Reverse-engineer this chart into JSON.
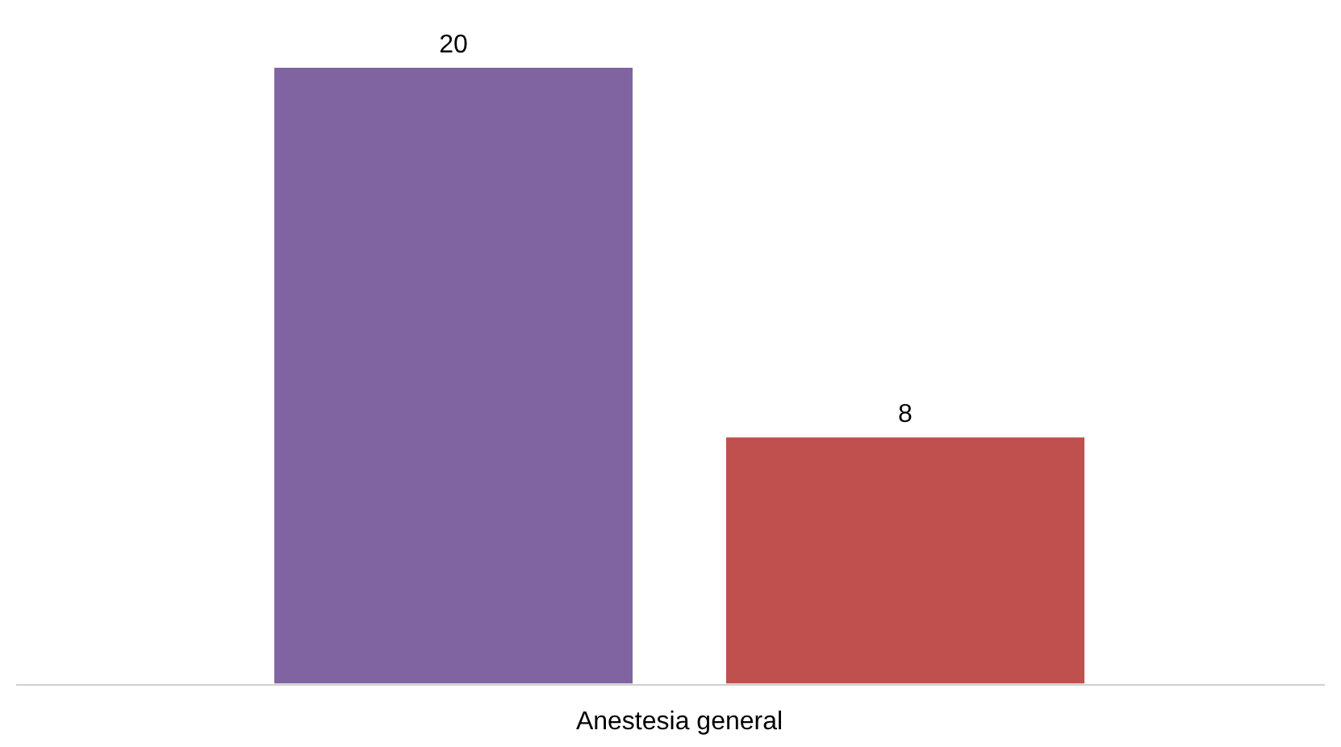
{
  "chart_data": {
    "type": "bar",
    "categories": [
      null,
      null
    ],
    "xlabel": "Anestesia general",
    "ylim": [
      0,
      20
    ],
    "values": [
      20,
      8
    ],
    "colors": [
      "#8064a2",
      "#c0504d"
    ],
    "data_labels": true,
    "grid": false,
    "legend": false,
    "tick_labels": false
  }
}
